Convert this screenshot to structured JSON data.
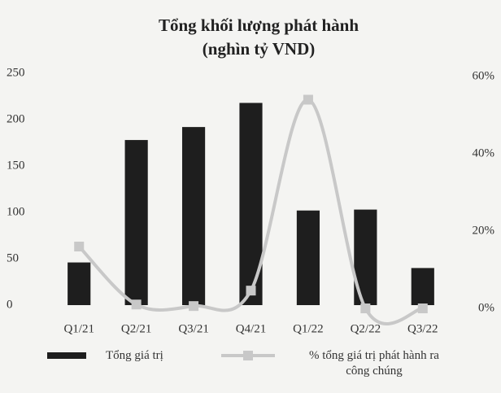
{
  "chart_data": {
    "type": "bar-line",
    "title": "Tổng khối lượng phát hành",
    "subtitle": "(nghìn tỷ VND)",
    "categories": [
      "Q1/21",
      "Q2/21",
      "Q3/21",
      "Q4/21",
      "Q1/22",
      "Q2/22",
      "Q3/22"
    ],
    "series": [
      {
        "name": "Tổng giá trị",
        "type": "bar",
        "color": "#1e1e1e",
        "values": [
          46,
          178,
          192,
          218,
          102,
          103,
          40
        ]
      },
      {
        "name": "% tổng giá trị phát hành ra công chúng",
        "type": "line",
        "axis": "y2",
        "color": "#c8c8c8",
        "values": [
          16,
          1,
          0.6,
          4.6,
          54,
          0,
          0
        ]
      }
    ],
    "ylim": [
      0,
      250
    ],
    "yticks": [
      0,
      50,
      100,
      150,
      200,
      250
    ],
    "y2lim": [
      0,
      60
    ],
    "y2ticks": [
      {
        "value": 0,
        "label": "0%"
      },
      {
        "value": 20,
        "label": "20%"
      },
      {
        "value": 40,
        "label": "40%"
      },
      {
        "value": 60,
        "label": "60%"
      }
    ],
    "grid": false
  }
}
